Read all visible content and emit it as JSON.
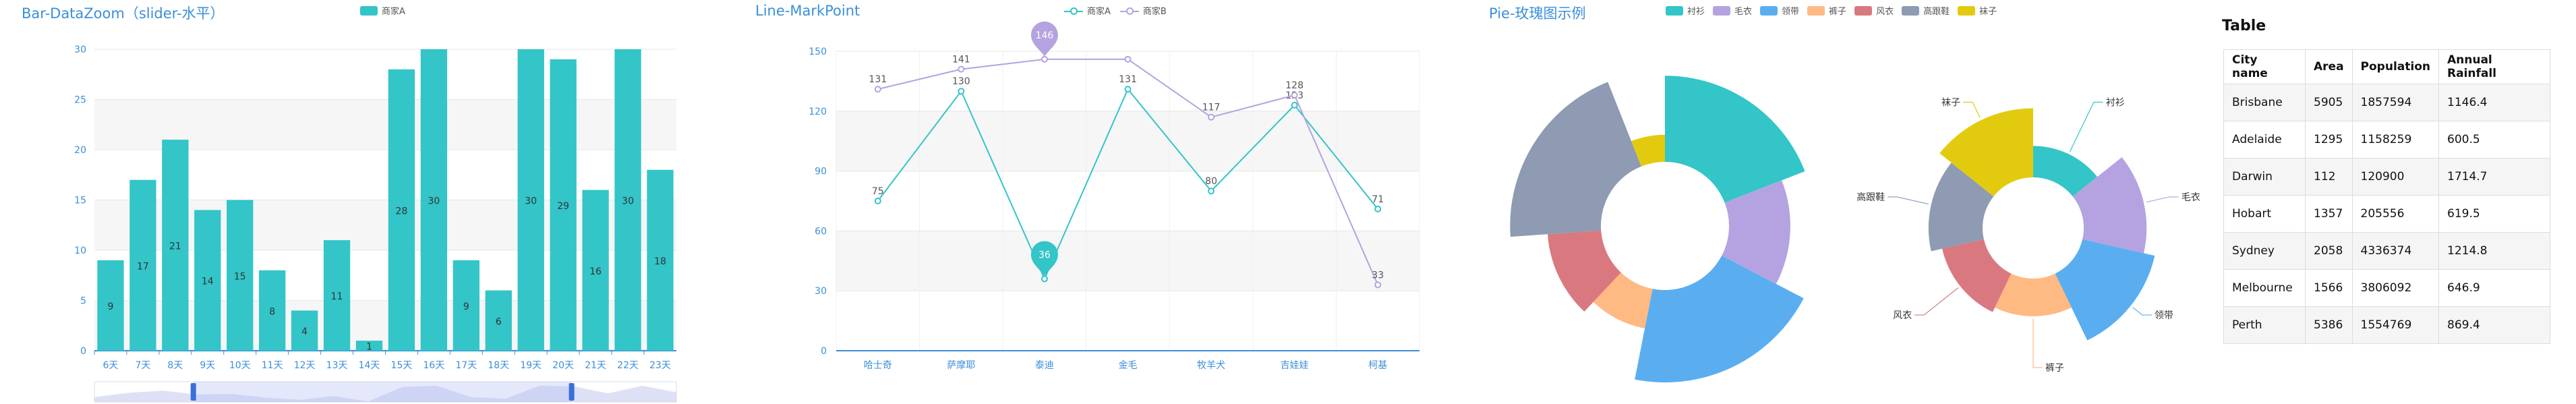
{
  "colors": {
    "teal": "#33c5c8",
    "purple": "#b4a3e0",
    "title": "#3b8fd9",
    "rose_palette": [
      "#33c5c8",
      "#b4a3e0",
      "#5aaef0",
      "#ffb983",
      "#d9797f",
      "#8e9bb2",
      "#e2cb0e"
    ]
  },
  "bar_panel": {
    "title": "Bar-DataZoom（slider-水平）",
    "legend": "商家A"
  },
  "line_panel": {
    "title": "Line-MarkPoint",
    "legend": [
      "商家A",
      "商家B"
    ]
  },
  "pie_panel": {
    "title": "Pie-玫瑰图示例",
    "legend": [
      "衬衫",
      "毛衣",
      "领带",
      "裤子",
      "风衣",
      "高跟鞋",
      "袜子"
    ]
  },
  "table_panel": {
    "title": "Table",
    "headers": [
      "City name",
      "Area",
      "Population",
      "Annual Rainfall"
    ],
    "rows": [
      [
        "Brisbane",
        "5905",
        "1857594",
        "1146.4"
      ],
      [
        "Adelaide",
        "1295",
        "1158259",
        "600.5"
      ],
      [
        "Darwin",
        "112",
        "120900",
        "1714.7"
      ],
      [
        "Hobart",
        "1357",
        "205556",
        "619.5"
      ],
      [
        "Sydney",
        "2058",
        "4336374",
        "1214.8"
      ],
      [
        "Melbourne",
        "1566",
        "3806092",
        "646.9"
      ],
      [
        "Perth",
        "5386",
        "1554769",
        "869.4"
      ]
    ]
  },
  "chart_data": [
    {
      "type": "bar",
      "title": "Bar-DataZoom（slider-水平）",
      "categories": [
        "6天",
        "7天",
        "8天",
        "9天",
        "10天",
        "11天",
        "12天",
        "13天",
        "14天",
        "15天",
        "16天",
        "17天",
        "18天",
        "19天",
        "20天",
        "21天",
        "22天",
        "23天"
      ],
      "series": [
        {
          "name": "商家A",
          "values": [
            9,
            17,
            21,
            14,
            15,
            8,
            4,
            11,
            1,
            28,
            30,
            9,
            6,
            30,
            29,
            16,
            30,
            18
          ]
        }
      ],
      "ylim": [
        0,
        30
      ],
      "yticks": [
        0,
        5,
        10,
        15,
        20,
        25,
        30
      ],
      "datazoom": "slider-horizontal"
    },
    {
      "type": "line",
      "title": "Line-MarkPoint",
      "categories": [
        "哈士奇",
        "萨摩耶",
        "泰迪",
        "金毛",
        "牧羊犬",
        "吉娃娃",
        "柯基"
      ],
      "series": [
        {
          "name": "商家A",
          "values": [
            75,
            130,
            36,
            131,
            80,
            123,
            71
          ],
          "markpoint": 36
        },
        {
          "name": "商家B",
          "values": [
            131,
            141,
            146,
            146,
            117,
            128,
            33
          ],
          "markpoint": 146
        }
      ],
      "ylim": [
        0,
        150
      ],
      "yticks": [
        0,
        30,
        60,
        90,
        120,
        150
      ]
    },
    {
      "type": "pie",
      "subtype": "rose-radius",
      "title": "Pie-玫瑰图示例",
      "categories": [
        "衬衫",
        "毛衣",
        "领带",
        "裤子",
        "风衣",
        "高跟鞋",
        "袜子"
      ],
      "values": [
        111,
        79,
        119,
        52,
        69,
        117,
        35
      ],
      "labels_shown": false
    },
    {
      "type": "pie",
      "subtype": "rose-area",
      "categories": [
        "衬衫",
        "毛衣",
        "领带",
        "裤子",
        "风衣",
        "高跟鞋",
        "袜子"
      ],
      "values": [
        50,
        100,
        118,
        60,
        68,
        86,
        110
      ],
      "labels_shown": true
    },
    {
      "type": "table",
      "title": "Table",
      "headers": [
        "City name",
        "Area",
        "Population",
        "Annual Rainfall"
      ],
      "rows": [
        [
          "Brisbane",
          5905,
          1857594,
          1146.4
        ],
        [
          "Adelaide",
          1295,
          1158259,
          600.5
        ],
        [
          "Darwin",
          112,
          120900,
          1714.7
        ],
        [
          "Hobart",
          1357,
          205556,
          619.5
        ],
        [
          "Sydney",
          2058,
          4336374,
          1214.8
        ],
        [
          "Melbourne",
          1566,
          3806092,
          646.9
        ],
        [
          "Perth",
          5386,
          1554769,
          869.4
        ]
      ]
    }
  ]
}
